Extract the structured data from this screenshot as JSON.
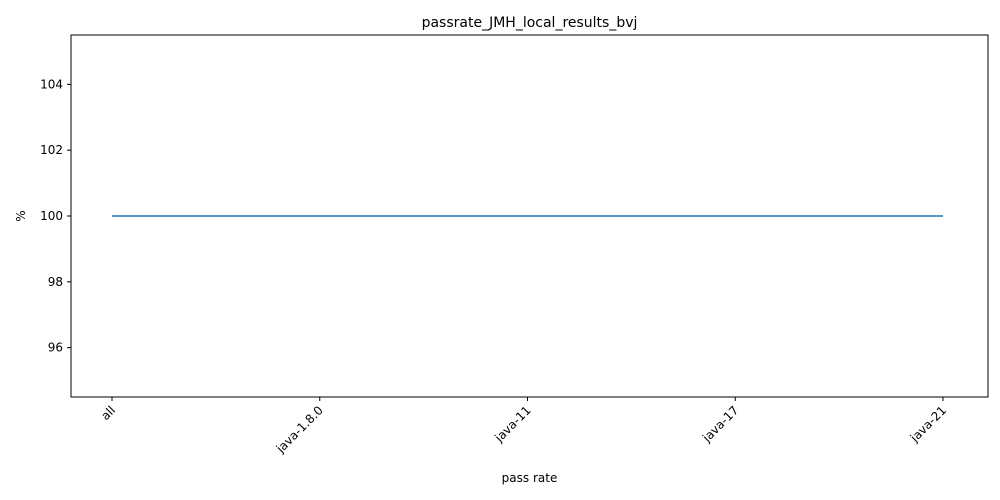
{
  "chart_data": {
    "type": "line",
    "title": "passrate_JMH_local_results_bvj",
    "xlabel": "pass rate",
    "ylabel": "%",
    "categories": [
      "all",
      "java-1.8.0",
      "java-11",
      "java-17",
      "java-21"
    ],
    "series": [
      {
        "values": [
          100,
          100,
          100,
          100,
          100
        ],
        "color": "#1f77b4"
      }
    ],
    "yticks": [
      96,
      98,
      100,
      102,
      104
    ],
    "ylim": [
      94.5,
      105.5
    ],
    "grid": false,
    "x_tick_rotation_deg": 45
  }
}
